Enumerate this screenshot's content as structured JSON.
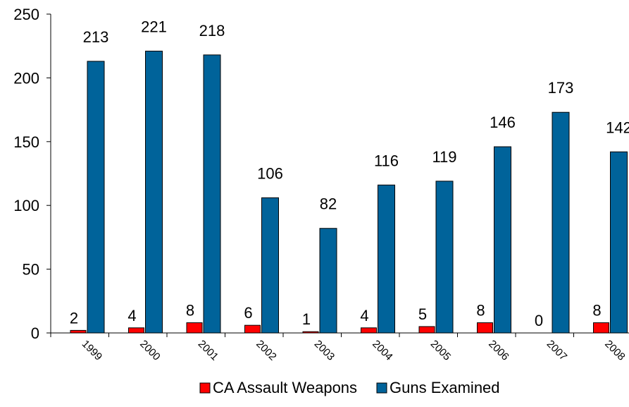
{
  "chart_data": {
    "type": "bar",
    "categories": [
      "1999",
      "2000",
      "2001",
      "2002",
      "2003",
      "2004",
      "2005",
      "2006",
      "2007",
      "2008"
    ],
    "series": [
      {
        "name": "CA Assault Weapons",
        "color": "#ff0000",
        "values": [
          2,
          4,
          8,
          6,
          1,
          4,
          5,
          8,
          0,
          8
        ]
      },
      {
        "name": "Guns Examined",
        "color": "#00639a",
        "values": [
          213,
          221,
          218,
          106,
          82,
          116,
          119,
          146,
          173,
          142
        ]
      }
    ],
    "ylim": [
      0,
      250
    ],
    "yticks": [
      0,
      50,
      100,
      150,
      200,
      250
    ],
    "grid": false,
    "legend_position": "bottom"
  }
}
